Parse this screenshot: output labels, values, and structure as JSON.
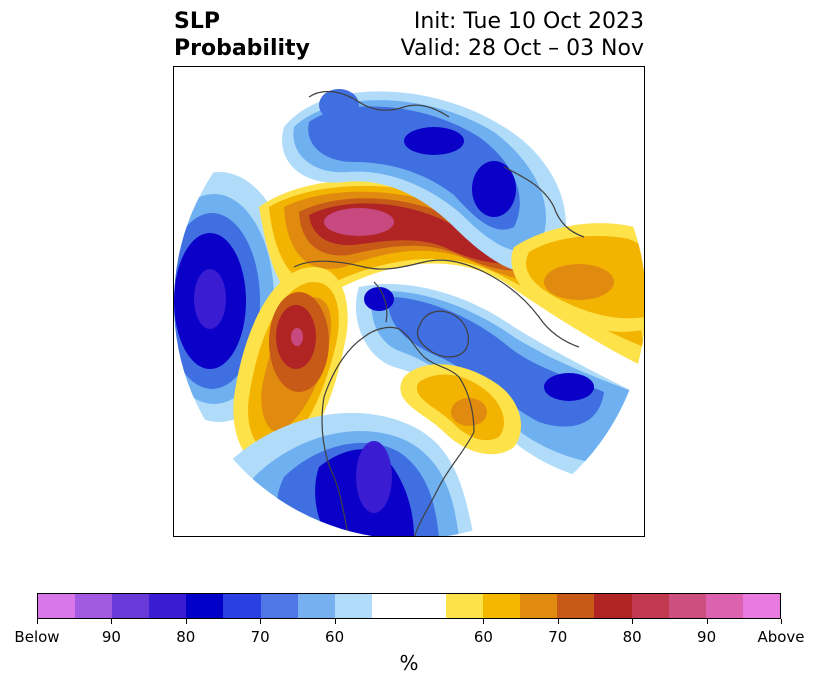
{
  "title": {
    "left_line1": "SLP",
    "left_line2": "Probability",
    "right_line1": "Init: Tue 10 Oct 2023",
    "right_line2": "Valid: 28 Oct – 03 Nov"
  },
  "map": {
    "projection": "north-polar stereographic",
    "colors": {
      "below_90_100": "#7a3fd8",
      "below_80_90": "#2a1ccf",
      "below_70_80": "#0a00c8",
      "below_60_70": "#3f6fe0",
      "below_50_60": "#6fb0f0",
      "below_40_50": "#b0dcfa",
      "neutral": "#ffffff",
      "above_40_50": "#fde24a",
      "above_50_60": "#f2b400",
      "above_60_70": "#e08a10",
      "above_70_80": "#c85a18",
      "above_80_90": "#b02424",
      "above_90_100": "#c84880"
    },
    "coastline_color": "#404040"
  },
  "colorbar": {
    "colors": [
      "#d877ea",
      "#a35ae2",
      "#6a3ad8",
      "#3a1cd2",
      "#0000c8",
      "#2a40e0",
      "#4f78e6",
      "#76b0f0",
      "#b0dcfa",
      "#ffffff",
      "#ffffff",
      "#fde24a",
      "#f4b800",
      "#e08a10",
      "#c85a18",
      "#b02424",
      "#c23a50",
      "#cc4f80",
      "#dc62b0",
      "#e87ae0"
    ],
    "tick_labels": [
      "Below",
      "90",
      "80",
      "70",
      "60",
      "60",
      "70",
      "80",
      "90",
      "Above"
    ],
    "label": "%"
  }
}
